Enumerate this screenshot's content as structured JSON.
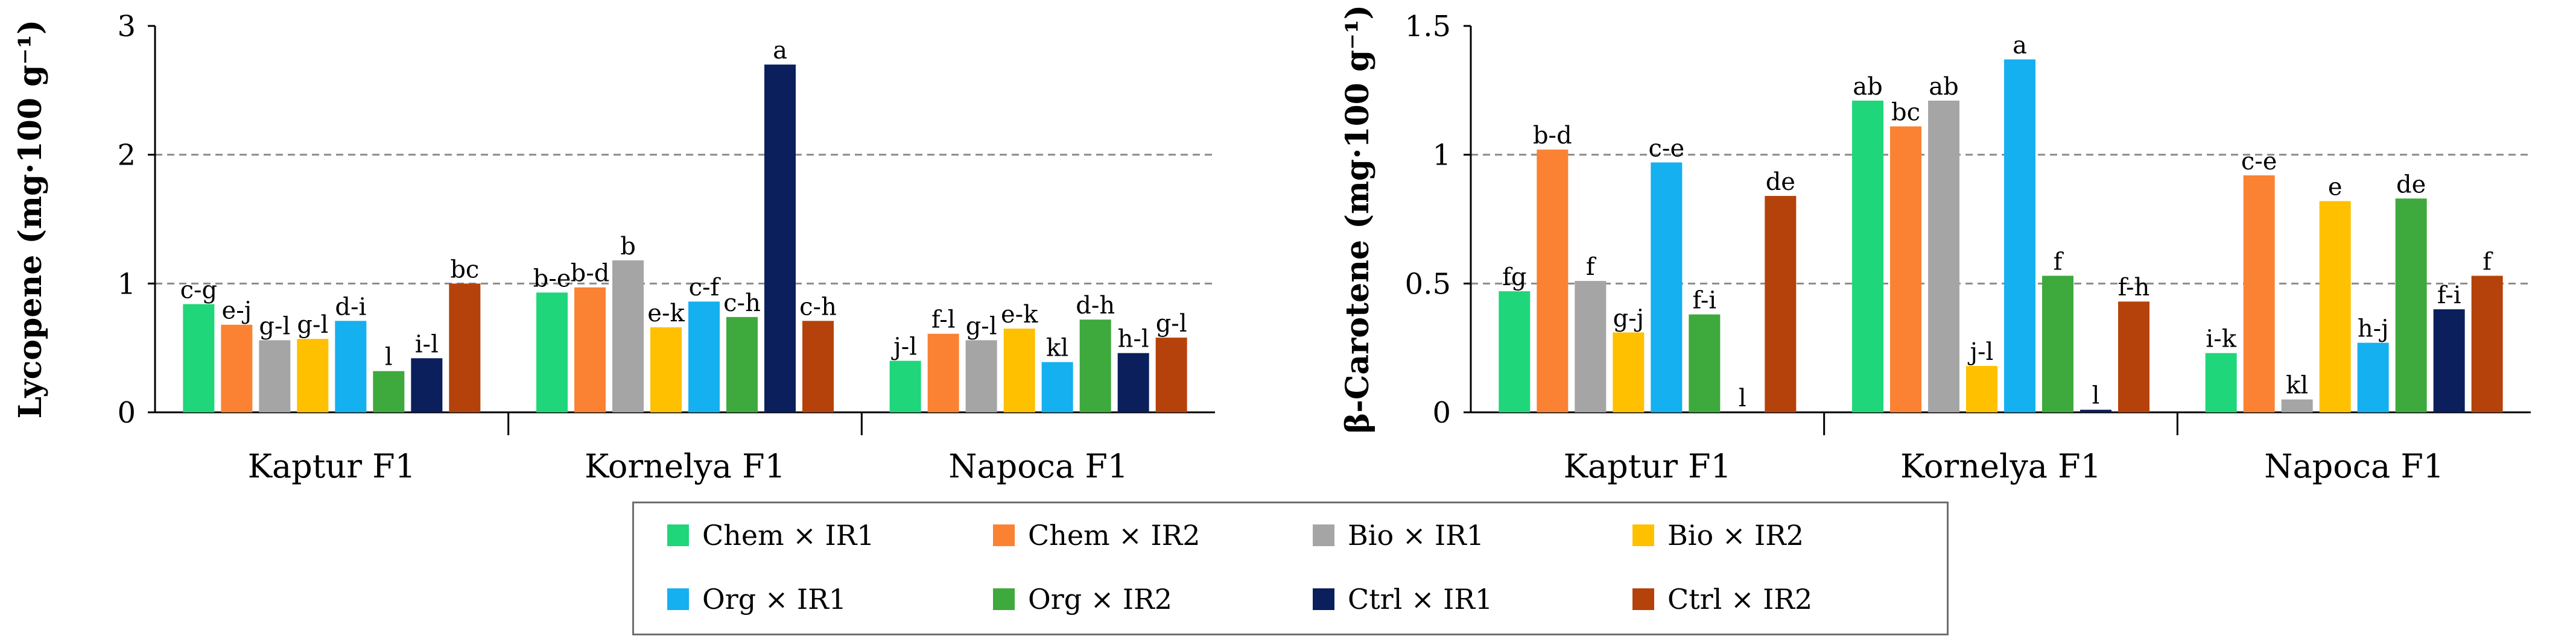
{
  "colors": {
    "Chem × IR1": "#1fd67a",
    "Chem × IR2": "#fb8232",
    "Bio × IR1": "#a5a5a5",
    "Bio × IR2": "#ffc000",
    "Org × IR1": "#14b0f0",
    "Org × IR2": "#3ea93c",
    "Ctrl × IR1": "#0a1f5c",
    "Ctrl × IR2": "#b5420a"
  },
  "chart_data": [
    {
      "type": "bar",
      "ylabel": "Lycopene (mg·100 g⁻¹)",
      "ylim": [
        0,
        3
      ],
      "yticks": [
        "0",
        "1",
        "2",
        "3"
      ],
      "categories": [
        "Kaptur F1",
        "Kornelya F1",
        "Napoca F1"
      ],
      "series": [
        {
          "name": "Chem × IR1",
          "values": [
            0.84,
            0.93,
            0.4
          ],
          "labels": [
            "c-g",
            "b-e",
            "j-l"
          ]
        },
        {
          "name": "Chem × IR2",
          "values": [
            0.68,
            0.97,
            0.61
          ],
          "labels": [
            "e-j",
            "b-d",
            "f-l"
          ]
        },
        {
          "name": "Bio × IR1",
          "values": [
            0.56,
            1.18,
            0.56
          ],
          "labels": [
            "g-l",
            "b",
            "g-l"
          ]
        },
        {
          "name": "Bio × IR2",
          "values": [
            0.57,
            0.66,
            0.65
          ],
          "labels": [
            "g-l",
            "e-k",
            "e-k"
          ]
        },
        {
          "name": "Org × IR1",
          "values": [
            0.71,
            0.86,
            0.39
          ],
          "labels": [
            "d-i",
            "c-f",
            "kl"
          ]
        },
        {
          "name": "Org × IR2",
          "values": [
            0.32,
            0.74,
            0.72
          ],
          "labels": [
            "l",
            "c-h",
            "d-h"
          ]
        },
        {
          "name": "Ctrl × IR1",
          "values": [
            0.42,
            2.7,
            0.46
          ],
          "labels": [
            "i-l",
            "a",
            "h-l"
          ]
        },
        {
          "name": "Ctrl × IR2",
          "values": [
            1.0,
            0.71,
            0.58
          ],
          "labels": [
            "bc",
            "c-h",
            "g-l"
          ]
        }
      ]
    },
    {
      "type": "bar",
      "ylabel": "β-Carotene (mg·100 g⁻¹)",
      "ylim": [
        0,
        1.5
      ],
      "yticks": [
        "0",
        "0.5",
        "1",
        "1.5"
      ],
      "categories": [
        "Kaptur F1",
        "Kornelya F1",
        "Napoca F1"
      ],
      "series": [
        {
          "name": "Chem × IR1",
          "values": [
            0.47,
            1.21,
            0.23
          ],
          "labels": [
            "fg",
            "ab",
            "i-k"
          ]
        },
        {
          "name": "Chem × IR2",
          "values": [
            1.02,
            1.11,
            0.92
          ],
          "labels": [
            "b-d",
            "bc",
            "c-e"
          ]
        },
        {
          "name": "Bio × IR1",
          "values": [
            0.51,
            1.21,
            0.05
          ],
          "labels": [
            "f",
            "ab",
            "kl"
          ]
        },
        {
          "name": "Bio × IR2",
          "values": [
            0.31,
            0.18,
            0.82
          ],
          "labels": [
            "g-j",
            "j-l",
            "e"
          ]
        },
        {
          "name": "Org × IR1",
          "values": [
            0.97,
            1.37,
            0.27
          ],
          "labels": [
            "c-e",
            "a",
            "h-j"
          ]
        },
        {
          "name": "Org × IR2",
          "values": [
            0.38,
            0.53,
            0.83
          ],
          "labels": [
            "f-i",
            "f",
            "de"
          ]
        },
        {
          "name": "Ctrl × IR1",
          "values": [
            0.0,
            0.01,
            0.4
          ],
          "labels": [
            "l",
            "l",
            "f-i"
          ]
        },
        {
          "name": "Ctrl × IR2",
          "values": [
            0.84,
            0.43,
            0.53
          ],
          "labels": [
            "de",
            "f-h",
            "f"
          ]
        }
      ]
    }
  ]
}
